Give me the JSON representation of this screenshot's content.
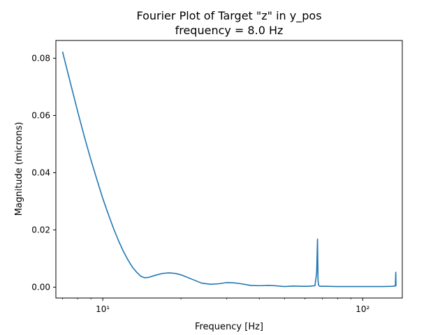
{
  "chart_data": {
    "type": "line",
    "title": "Fourier Plot of Target \"z\" in y_pos",
    "subtitle": "frequency = 8.0 Hz",
    "xlabel": "Frequency [Hz]",
    "ylabel": "Magnitude (microns)",
    "xscale": "log",
    "xlim": [
      6.6,
      142
    ],
    "ylim": [
      -0.0038,
      0.0862
    ],
    "xticks": [
      {
        "value": 10,
        "label": "10¹"
      },
      {
        "value": 100,
        "label": "10²"
      }
    ],
    "yticks": [
      {
        "value": 0.0,
        "label": "0.00"
      },
      {
        "value": 0.02,
        "label": "0.02"
      },
      {
        "value": 0.04,
        "label": "0.04"
      },
      {
        "value": 0.06,
        "label": "0.06"
      },
      {
        "value": 0.08,
        "label": "0.08"
      }
    ],
    "grid": false,
    "line_color": "#1f77b4",
    "series": [
      {
        "x": [
          7.0,
          7.5,
          8.0,
          8.5,
          9.0,
          9.5,
          10.0,
          10.5,
          11.0,
          11.5,
          12.0,
          12.5,
          13.0,
          13.5,
          14.0,
          14.5,
          15.0,
          16.0,
          17.0,
          18.0,
          19.0,
          20.0,
          22.0,
          24.0,
          26.0,
          28.0,
          30.0,
          32.0,
          34.0,
          37.0,
          40.0,
          43.0,
          46.0,
          50.0,
          54.0,
          58.0,
          62.0,
          65.5,
          66.5,
          67.0,
          67.3,
          67.6,
          68.0,
          69.0,
          72.0,
          80.0,
          90.0,
          100.0,
          110.0,
          120.0,
          130.0,
          133.5,
          134.0,
          134.3
        ],
        "y": [
          0.0823,
          0.0715,
          0.0615,
          0.0525,
          0.0445,
          0.0375,
          0.031,
          0.0255,
          0.0205,
          0.0162,
          0.0125,
          0.0095,
          0.007,
          0.0052,
          0.0038,
          0.0033,
          0.0034,
          0.0042,
          0.0048,
          0.005,
          0.0048,
          0.0043,
          0.0028,
          0.0014,
          0.001,
          0.0012,
          0.0016,
          0.0015,
          0.0012,
          0.0006,
          0.0005,
          0.0006,
          0.0005,
          0.0002,
          0.0004,
          0.0003,
          0.0003,
          0.0005,
          0.005,
          0.0168,
          0.0025,
          0.0008,
          0.0004,
          0.0003,
          0.0003,
          0.0002,
          0.0002,
          0.0002,
          0.0002,
          0.0002,
          0.0003,
          0.0004,
          0.0052,
          0.0004
        ]
      }
    ]
  }
}
